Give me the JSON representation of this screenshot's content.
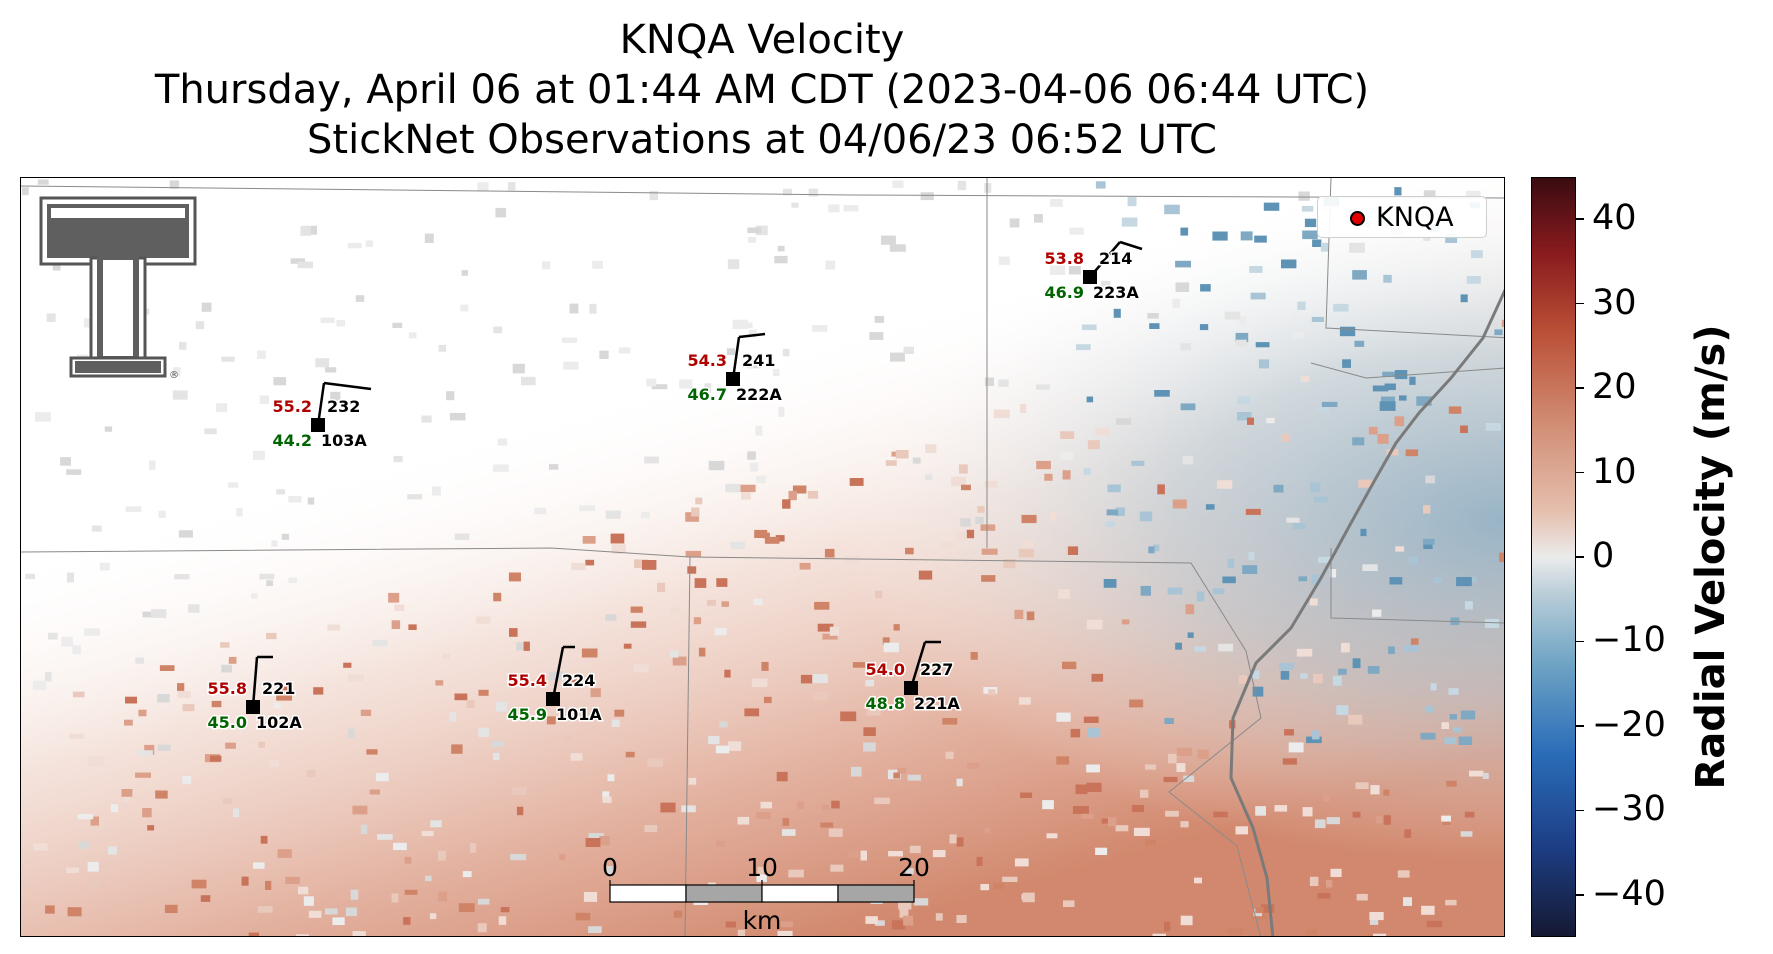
{
  "title": {
    "line1": "KNQA Velocity",
    "line2": "Thursday, April 06 at 01:44 AM CDT (2023-04-06 06:44 UTC)",
    "line3": "StickNet Observations at 04/06/23 06:52 UTC"
  },
  "legend": {
    "label": "KNQA",
    "marker_color": "#e00000"
  },
  "colorbar": {
    "label": "Radial Velocity (m/s)",
    "range": [
      -45,
      45
    ],
    "ticks": [
      40,
      30,
      20,
      10,
      0,
      -10,
      -20,
      -30,
      -40
    ],
    "tick_labels": [
      "40",
      "30",
      "20",
      "10",
      "0",
      "−10",
      "−20",
      "−30",
      "−40"
    ],
    "colormap": "blue-white-red (negative blue, positive red)"
  },
  "scale_bar": {
    "ticks": [
      "0",
      "10",
      "20"
    ],
    "unit": "km"
  },
  "logo": {
    "name": "Texas Tech Double T",
    "mark": "®"
  },
  "stations": [
    {
      "id": "232",
      "probe": "103A",
      "temp": "55.2",
      "dew": "44.2"
    },
    {
      "id": "241",
      "probe": "222A",
      "temp": "54.3",
      "dew": "46.7"
    },
    {
      "id": "214",
      "probe": "223A",
      "temp": "53.8",
      "dew": "46.9"
    },
    {
      "id": "221",
      "probe": "102A",
      "temp": "55.8",
      "dew": "45.0"
    },
    {
      "id": "224",
      "probe": "101A",
      "temp": "55.4",
      "dew": "45.9"
    },
    {
      "id": "227",
      "probe": "221A",
      "temp": "54.0",
      "dew": "48.8"
    }
  ],
  "colors": {
    "temp": "#b00000",
    "dew": "#006400",
    "station": "#000000",
    "border": "#777777",
    "river": "#7a7a7a"
  }
}
